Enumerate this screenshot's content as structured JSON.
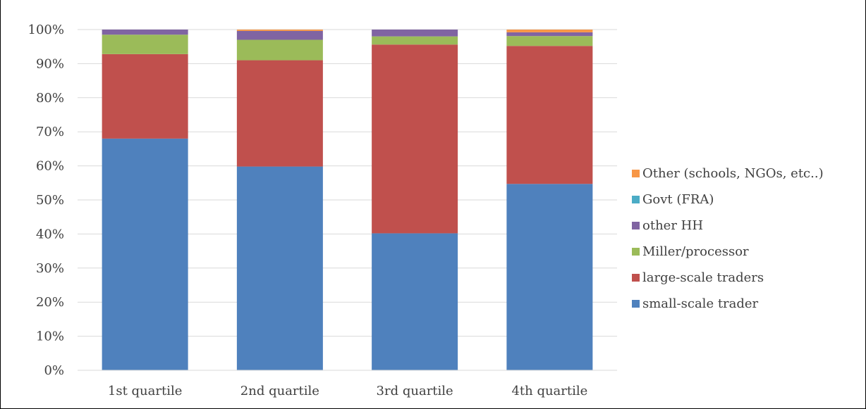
{
  "title": "",
  "chart_data": {
    "type": "bar",
    "stacked": true,
    "percent": true,
    "categories": [
      "1st quartile",
      "2nd quartile",
      "3rd quartile",
      "4th quartile"
    ],
    "y_tick_labels": [
      "0%",
      "10%",
      "20%",
      "30%",
      "40%",
      "50%",
      "60%",
      "70%",
      "80%",
      "90%",
      "100%"
    ],
    "ylim": [
      0,
      100
    ],
    "grid": true,
    "legend_position": "right",
    "series": [
      {
        "name": "small-scale trader",
        "color": "#4F81BD",
        "values": [
          68,
          59.8,
          40.2,
          54.7
        ]
      },
      {
        "name": "large-scale traders",
        "color": "#C0504D",
        "values": [
          24.8,
          31.2,
          55.4,
          40.5
        ]
      },
      {
        "name": "Miller/processor",
        "color": "#9BBB59",
        "values": [
          5.7,
          6,
          2.4,
          2.9
        ]
      },
      {
        "name": "other HH",
        "color": "#8064A2",
        "values": [
          1.5,
          2.6,
          2,
          1.1
        ]
      },
      {
        "name": "Govt (FRA)",
        "color": "#4BACC6",
        "values": [
          0,
          0,
          0,
          0
        ]
      },
      {
        "name": "Other (schools, NGOs, etc..)",
        "color": "#F79646",
        "values": [
          0,
          0.4,
          0,
          0.8
        ]
      }
    ]
  }
}
